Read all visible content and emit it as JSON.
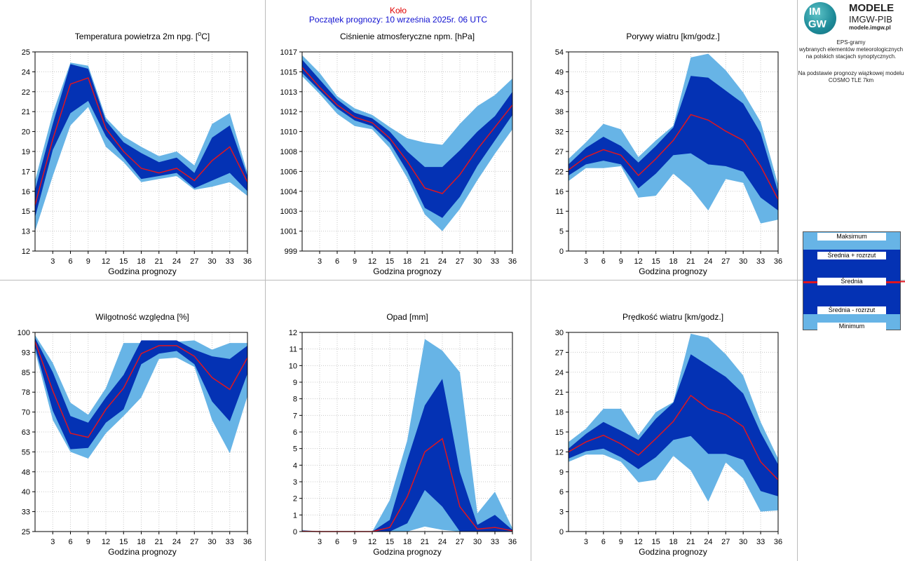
{
  "header": {
    "station": "Koło",
    "start_label": "Początek prognozy: 10 września 2025r. 06 UTC"
  },
  "logo": {
    "line1": "MODELE",
    "line2": "IMGW-PIB",
    "line3": "modele.imgw.pl",
    "mark_top": "IM",
    "mark_bottom": "GW"
  },
  "info": {
    "description": [
      "EPS-gramy",
      "wybranych elementów meteorologicznych",
      "na polskich stacjach  synoptycznych."
    ],
    "model": [
      "Na podstawie prognozy wiązkowej modelu",
      "COSMO TLE 7km"
    ]
  },
  "legend": {
    "max": "Maksimum",
    "mean_plus": "Średnia + rozrzut",
    "mean": "Średnia",
    "mean_minus": "Średnia - rozrzut",
    "min": "Minimum",
    "colors": {
      "outer": "#67b4e6",
      "inner": "#0432b4",
      "mean": "#e0151f"
    }
  },
  "chart_data": [
    {
      "type": "area",
      "title": "Temperatura powietrza 2m npg. [°C]",
      "xlabel": "Godzina prognozy",
      "x": [
        0,
        3,
        6,
        9,
        12,
        15,
        18,
        21,
        24,
        27,
        30,
        33,
        36
      ],
      "xticks": [
        "3",
        "6",
        "9",
        "12",
        "15",
        "18",
        "21",
        "24",
        "27",
        "30",
        "33",
        "36"
      ],
      "ylim": [
        12,
        25
      ],
      "yticks": [
        "12",
        "13",
        "15",
        "16",
        "17",
        "19",
        "20",
        "21",
        "22",
        "24",
        "25"
      ],
      "series": {
        "max": [
          16.6,
          21.0,
          24.3,
          24.1,
          20.7,
          19.5,
          18.8,
          18.2,
          18.5,
          17.6,
          20.3,
          21.0,
          17.1
        ],
        "mean_plus": [
          16.0,
          20.3,
          24.2,
          23.9,
          20.5,
          19.1,
          18.4,
          17.8,
          18.1,
          17.1,
          19.4,
          20.2,
          16.9
        ],
        "mean": [
          15.0,
          19.3,
          22.9,
          23.3,
          20.0,
          18.5,
          17.4,
          17.1,
          17.4,
          16.6,
          17.9,
          18.8,
          16.5
        ],
        "mean_minus": [
          14.2,
          18.6,
          21.0,
          21.8,
          19.5,
          18.1,
          16.7,
          16.9,
          17.1,
          16.1,
          16.6,
          17.1,
          15.9
        ],
        "min": [
          13.3,
          16.9,
          20.2,
          21.4,
          18.8,
          17.8,
          16.5,
          16.7,
          16.9,
          16.0,
          16.2,
          16.5,
          15.6
        ]
      }
    },
    {
      "type": "area",
      "title": "Ciśnienie atmosferyczne npm. [hPa]",
      "xlabel": "Godzina prognozy",
      "x": [
        0,
        3,
        6,
        9,
        12,
        15,
        18,
        21,
        24,
        27,
        30,
        33,
        36
      ],
      "xticks": [
        "3",
        "6",
        "9",
        "12",
        "15",
        "18",
        "21",
        "24",
        "27",
        "30",
        "33",
        "36"
      ],
      "ylim": [
        999,
        1017
      ],
      "yticks": [
        "999",
        "1001",
        "1003",
        "1004",
        "1006",
        "1008",
        "1010",
        "1012",
        "1013",
        "1015",
        "1017"
      ],
      "series": {
        "max": [
          1016.7,
          1015.1,
          1013.0,
          1011.9,
          1011.3,
          1010.2,
          1009.2,
          1008.8,
          1008.6,
          1010.5,
          1012.1,
          1013.1,
          1014.6
        ],
        "mean_plus": [
          1016.3,
          1014.5,
          1012.7,
          1011.5,
          1011.0,
          1009.8,
          1008.0,
          1006.6,
          1006.6,
          1008.1,
          1009.8,
          1011.2,
          1013.4
        ],
        "mean": [
          1015.6,
          1013.8,
          1012.2,
          1011.1,
          1010.6,
          1009.2,
          1007.1,
          1004.7,
          1004.2,
          1005.9,
          1008.2,
          1010.2,
          1012.2
        ],
        "mean_minus": [
          1015.1,
          1013.5,
          1011.9,
          1010.8,
          1010.3,
          1008.8,
          1006.2,
          1002.9,
          1002.0,
          1003.9,
          1006.7,
          1009.0,
          1011.3
        ],
        "min": [
          1014.8,
          1013.2,
          1011.4,
          1010.3,
          1010.0,
          1008.3,
          1005.6,
          1002.3,
          1000.8,
          1002.8,
          1005.4,
          1007.8,
          1010.0
        ]
      }
    },
    {
      "type": "area",
      "title": "Porywy wiatru [km/godz.]",
      "xlabel": "Godzina prognozy",
      "x": [
        0,
        3,
        6,
        9,
        12,
        15,
        18,
        21,
        24,
        27,
        30,
        33,
        36
      ],
      "xticks": [
        "3",
        "6",
        "9",
        "12",
        "15",
        "18",
        "21",
        "24",
        "27",
        "30",
        "33",
        "36"
      ],
      "ylim": [
        0,
        54
      ],
      "yticks": [
        "0",
        "5",
        "11",
        "16",
        "22",
        "27",
        "32",
        "38",
        "43",
        "49",
        "54"
      ],
      "series": {
        "max": [
          25.0,
          29.5,
          34.5,
          33.0,
          25.5,
          30.0,
          34.0,
          52.5,
          53.5,
          49.0,
          43.0,
          35.0,
          18.0
        ],
        "mean_plus": [
          23.5,
          28.0,
          31.0,
          28.5,
          24.0,
          28.5,
          33.5,
          47.5,
          47.0,
          43.5,
          40.0,
          32.0,
          16.0
        ],
        "mean": [
          22.0,
          25.5,
          27.5,
          26.0,
          20.5,
          25.0,
          30.0,
          37.0,
          35.5,
          32.5,
          30.0,
          23.0,
          14.0
        ],
        "mean_minus": [
          20.5,
          23.5,
          24.5,
          23.5,
          17.0,
          21.0,
          26.0,
          26.5,
          23.5,
          23.0,
          21.5,
          14.5,
          11.0
        ],
        "min": [
          19.0,
          22.5,
          22.5,
          23.0,
          14.5,
          15.0,
          21.0,
          17.0,
          11.0,
          19.5,
          18.5,
          7.5,
          8.5
        ]
      }
    },
    {
      "type": "area",
      "title": "Wilgotność względna [%]",
      "xlabel": "Godzina prognozy",
      "x": [
        0,
        3,
        6,
        9,
        12,
        15,
        18,
        21,
        24,
        27,
        30,
        33,
        36
      ],
      "xticks": [
        "3",
        "6",
        "9",
        "12",
        "15",
        "18",
        "21",
        "24",
        "27",
        "30",
        "33",
        "36"
      ],
      "ylim": [
        25,
        100
      ],
      "yticks": [
        "25",
        "33",
        "40",
        "48",
        "55",
        "63",
        "70",
        "78",
        "85",
        "93",
        "100"
      ],
      "series": {
        "max": [
          99.0,
          88.5,
          73.5,
          69.0,
          79.0,
          96.0,
          96.0,
          97.0,
          96.5,
          97.0,
          93.5,
          96.0,
          96.0
        ],
        "mean_plus": [
          98.0,
          85.0,
          68.5,
          66.0,
          75.5,
          84.0,
          97.0,
          97.0,
          97.0,
          93.5,
          91.0,
          90.0,
          95.0
        ],
        "mean": [
          96.5,
          78.0,
          62.0,
          60.5,
          71.0,
          79.0,
          92.0,
          95.0,
          95.0,
          91.0,
          83.0,
          78.5,
          90.5
        ],
        "mean_minus": [
          94.5,
          70.5,
          56.0,
          56.5,
          66.0,
          71.0,
          88.0,
          92.0,
          93.0,
          88.0,
          74.0,
          66.5,
          84.5
        ],
        "min": [
          93.0,
          67.0,
          55.0,
          52.5,
          62.0,
          68.5,
          75.5,
          90.0,
          90.5,
          87.0,
          67.0,
          54.5,
          76.0
        ]
      }
    },
    {
      "type": "area",
      "title": "Opad [mm]",
      "xlabel": "Godzina prognozy",
      "x": [
        0,
        3,
        6,
        9,
        12,
        15,
        18,
        21,
        24,
        27,
        30,
        33,
        36
      ],
      "xticks": [
        "3",
        "6",
        "9",
        "12",
        "15",
        "18",
        "21",
        "24",
        "27",
        "30",
        "33",
        "36"
      ],
      "ylim": [
        0,
        12
      ],
      "yticks": [
        "0",
        "1",
        "2",
        "3",
        "4",
        "5",
        "6",
        "7",
        "8",
        "9",
        "10",
        "11",
        "12"
      ],
      "series": {
        "max": [
          0.1,
          0.0,
          0.0,
          0.0,
          0.0,
          1.9,
          5.5,
          11.6,
          10.9,
          9.6,
          1.1,
          2.4,
          0.2
        ],
        "mean_plus": [
          0.05,
          0.0,
          0.0,
          0.0,
          0.0,
          0.7,
          4.3,
          7.6,
          9.2,
          3.6,
          0.4,
          1.0,
          0.1
        ],
        "mean": [
          0.02,
          0.0,
          0.0,
          0.0,
          0.0,
          0.25,
          2.1,
          4.8,
          5.6,
          1.5,
          0.15,
          0.25,
          0.05
        ],
        "mean_minus": [
          0.0,
          0.0,
          0.0,
          0.0,
          0.0,
          0.0,
          0.5,
          2.5,
          1.5,
          0.0,
          0.0,
          0.0,
          0.0
        ],
        "min": [
          0.0,
          0.0,
          0.0,
          0.0,
          0.0,
          0.0,
          0.0,
          0.3,
          0.1,
          0.0,
          0.0,
          0.0,
          0.0
        ]
      }
    },
    {
      "type": "area",
      "title": "Prędkość wiatru [km/godz.]",
      "xlabel": "Godzina prognozy",
      "x": [
        0,
        3,
        6,
        9,
        12,
        15,
        18,
        21,
        24,
        27,
        30,
        33,
        36
      ],
      "xticks": [
        "3",
        "6",
        "9",
        "12",
        "15",
        "18",
        "21",
        "24",
        "27",
        "30",
        "33",
        "36"
      ],
      "ylim": [
        0,
        30
      ],
      "yticks": [
        "0",
        "3",
        "6",
        "9",
        "12",
        "15",
        "18",
        "21",
        "24",
        "27",
        "30"
      ],
      "series": {
        "max": [
          13.5,
          15.5,
          18.5,
          18.5,
          14.5,
          18.0,
          19.5,
          29.8,
          29.2,
          26.7,
          23.5,
          16.5,
          11.0
        ],
        "mean_plus": [
          12.5,
          14.7,
          16.5,
          15.2,
          13.8,
          17.0,
          19.4,
          26.7,
          25.0,
          23.3,
          20.8,
          14.9,
          10.1
        ],
        "mean": [
          12.0,
          13.5,
          14.5,
          13.2,
          11.5,
          14.0,
          16.6,
          20.5,
          18.5,
          17.6,
          15.8,
          10.5,
          7.8
        ],
        "mean_minus": [
          11.0,
          12.1,
          12.5,
          11.2,
          9.4,
          11.2,
          13.8,
          14.4,
          11.7,
          11.7,
          10.8,
          6.1,
          5.3
        ],
        "min": [
          10.5,
          11.6,
          11.6,
          10.5,
          7.4,
          7.8,
          11.4,
          9.2,
          4.5,
          10.4,
          8.0,
          3.0,
          3.2
        ]
      }
    }
  ]
}
